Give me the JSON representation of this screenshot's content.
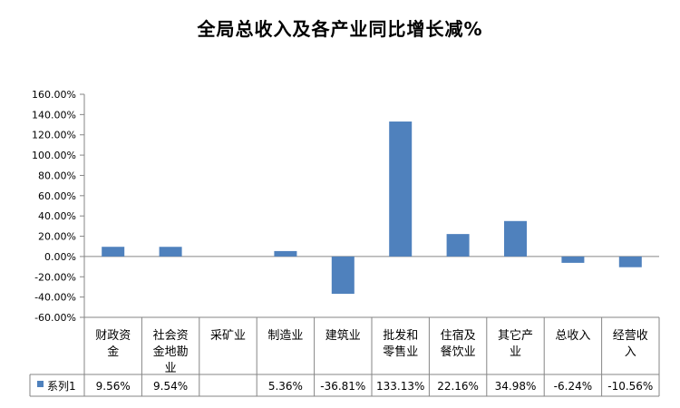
{
  "chart_data": {
    "type": "bar",
    "title": "全局总收入及各产业同比增长减%",
    "categories": [
      [
        "财政资",
        "金"
      ],
      [
        "社会资",
        "金地勘",
        "业"
      ],
      [
        "采矿业"
      ],
      [
        "制造业"
      ],
      [
        "建筑业"
      ],
      [
        "批发和",
        "零售业"
      ],
      [
        "住宿及",
        "餐饮业"
      ],
      [
        "其它产",
        "业"
      ],
      [
        "总收入"
      ],
      [
        "经营收",
        "入"
      ]
    ],
    "series": [
      {
        "name": "系列1",
        "values": [
          9.56,
          9.54,
          null,
          5.36,
          -36.81,
          133.13,
          22.16,
          34.98,
          -6.24,
          -10.56
        ],
        "labels": [
          "9.56%",
          "9.54%",
          "",
          "5.36%",
          "-36.81%",
          "133.13%",
          "22.16%",
          "34.98%",
          "-6.24%",
          "-10.56%"
        ]
      }
    ],
    "ylim": [
      -60,
      160
    ],
    "ytick_step": 20,
    "ytick_labels": [
      "160.00%",
      "140.00%",
      "120.00%",
      "100.00%",
      "80.00%",
      "60.00%",
      "40.00%",
      "20.00%",
      "0.00%",
      "-20.00%",
      "-40.00%",
      "-60.00%"
    ],
    "grid": false,
    "legend": "data-table",
    "colors": {
      "bar": "#4f81bd",
      "axis": "#868686"
    }
  }
}
